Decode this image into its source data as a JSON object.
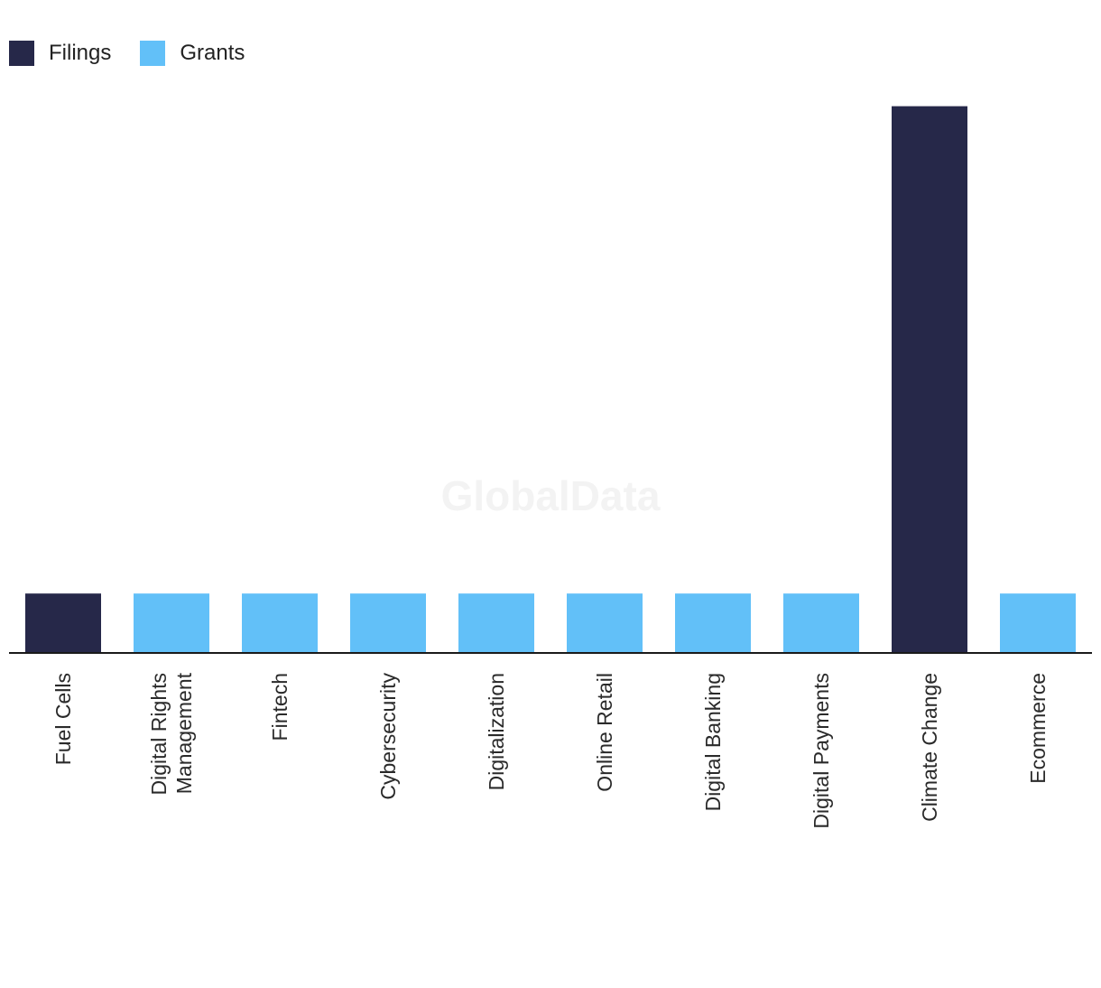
{
  "watermark": "GlobalData",
  "colors": {
    "filings": "#262849",
    "grants": "#62c0f8",
    "axis": "#1a1a1a"
  },
  "chart_data": {
    "type": "bar",
    "categories": [
      "Fuel Cells",
      "Digital Rights Management",
      "Fintech",
      "Cybersecurity",
      "Digitalization",
      "Online Retail",
      "Digital Banking",
      "Digital Payments",
      "Climate Change",
      "Ecommerce"
    ],
    "category_lines": [
      [
        "Fuel Cells"
      ],
      [
        "Digital Rights",
        "Management"
      ],
      [
        "Fintech"
      ],
      [
        "Cybersecurity"
      ],
      [
        "Digitalization"
      ],
      [
        "Online Retail"
      ],
      [
        "Digital Banking"
      ],
      [
        "Digital Payments"
      ],
      [
        "Climate Change"
      ],
      [
        "Ecommerce"
      ]
    ],
    "values": [
      1,
      1,
      1,
      1,
      1,
      1,
      1,
      1,
      9.2,
      1
    ],
    "bar_series": [
      "Filings",
      "Grants",
      "Grants",
      "Grants",
      "Grants",
      "Grants",
      "Grants",
      "Grants",
      "Filings",
      "Grants"
    ],
    "legend": [
      {
        "name": "Filings",
        "color": "#262849"
      },
      {
        "name": "Grants",
        "color": "#62c0f8"
      }
    ],
    "legend_position": "top-left",
    "ylim": [
      0,
      10
    ],
    "grid": false,
    "title": "",
    "xlabel": "",
    "ylabel": ""
  }
}
